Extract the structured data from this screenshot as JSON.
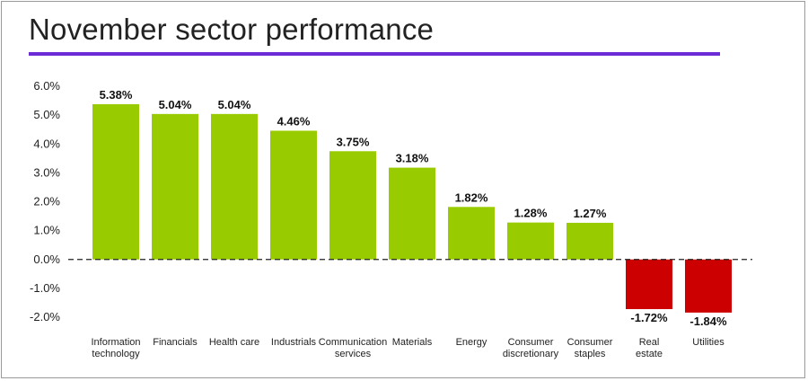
{
  "title": "November sector performance",
  "colors": {
    "positive": "#99cc00",
    "negative": "#cc0000",
    "accent": "#6b2bd6"
  },
  "chart_data": {
    "type": "bar",
    "title": "November sector performance",
    "xlabel": "",
    "ylabel": "",
    "ylim": [
      -2.0,
      6.0
    ],
    "yticks": [
      "6.0%",
      "5.0%",
      "4.0%",
      "3.0%",
      "2.0%",
      "1.0%",
      "0.0%",
      "-1.0%",
      "-2.0%"
    ],
    "ytick_values": [
      6,
      5,
      4,
      3,
      2,
      1,
      0,
      -1,
      -2
    ],
    "grid": false,
    "categories": [
      [
        "Information",
        "technology"
      ],
      [
        "Financials"
      ],
      [
        "Health care"
      ],
      [
        "Industrials"
      ],
      [
        "Communication",
        "services"
      ],
      [
        "Materials"
      ],
      [
        "Energy"
      ],
      [
        "Consumer",
        "discretionary"
      ],
      [
        "Consumer",
        "staples"
      ],
      [
        "Real",
        "estate"
      ],
      [
        "Utilities"
      ]
    ],
    "values": [
      5.38,
      5.04,
      5.04,
      4.46,
      3.75,
      3.18,
      1.82,
      1.28,
      1.27,
      -1.72,
      -1.84
    ],
    "labels": [
      "5.38%",
      "5.04%",
      "5.04%",
      "4.46%",
      "3.75%",
      "3.18%",
      "1.82%",
      "1.28%",
      "1.27%",
      "-1.72%",
      "-1.84%"
    ]
  }
}
